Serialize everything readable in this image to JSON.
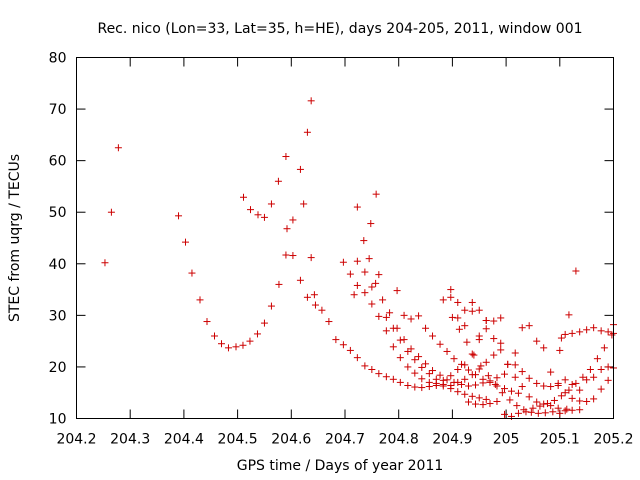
{
  "chart_data": {
    "type": "scatter",
    "title": "Rec. nico (Lon=33, Lat=35, h=HE), days 204-205, 2011, window 001",
    "xlabel": "GPS time / Days of year 2011",
    "ylabel": "STEC from uqrg / TECUs",
    "xlim": [
      204.2,
      205.2
    ],
    "ylim": [
      10,
      80
    ],
    "xticks": [
      204.2,
      204.3,
      204.4,
      204.5,
      204.6,
      204.7,
      204.8,
      204.9,
      205,
      205.1,
      205.2
    ],
    "xtick_labels": [
      "204.2",
      "204.3",
      "204.4",
      "204.5",
      "204.6",
      "204.7",
      "204.8",
      "204.9",
      "205",
      "205.1",
      "205.2"
    ],
    "yticks": [
      10,
      20,
      30,
      40,
      50,
      60,
      70,
      80
    ],
    "ytick_labels": [
      "10",
      "20",
      "30",
      "40",
      "50",
      "60",
      "70",
      "80"
    ],
    "marker": "+",
    "color": "#cc0000",
    "grid": false,
    "legend": "none",
    "points": [
      [
        204.253,
        40.2
      ],
      [
        204.265,
        50.0
      ],
      [
        204.278,
        62.5
      ],
      [
        204.39,
        49.3
      ],
      [
        204.403,
        44.2
      ],
      [
        204.415,
        38.2
      ],
      [
        204.43,
        33.0
      ],
      [
        204.443,
        28.8
      ],
      [
        204.457,
        26.0
      ],
      [
        204.47,
        24.5
      ],
      [
        204.483,
        23.7
      ],
      [
        204.497,
        23.9
      ],
      [
        204.51,
        24.2
      ],
      [
        204.523,
        25.0
      ],
      [
        204.537,
        26.4
      ],
      [
        204.55,
        28.5
      ],
      [
        204.563,
        31.8
      ],
      [
        204.577,
        36.0
      ],
      [
        204.59,
        41.7
      ],
      [
        204.603,
        48.5
      ],
      [
        204.617,
        58.3
      ],
      [
        204.63,
        65.5
      ],
      [
        204.637,
        71.6
      ],
      [
        204.511,
        52.9
      ],
      [
        204.524,
        50.5
      ],
      [
        204.538,
        49.5
      ],
      [
        204.55,
        49.0
      ],
      [
        204.563,
        51.6
      ],
      [
        204.576,
        56.0
      ],
      [
        204.59,
        60.8
      ],
      [
        204.592,
        46.8
      ],
      [
        204.603,
        41.6
      ],
      [
        204.617,
        36.8
      ],
      [
        204.63,
        33.5
      ],
      [
        204.643,
        34.0
      ],
      [
        204.623,
        51.6
      ],
      [
        204.637,
        41.2
      ],
      [
        204.645,
        32.0
      ],
      [
        204.657,
        31.0
      ],
      [
        204.67,
        28.8
      ],
      [
        204.683,
        25.3
      ],
      [
        204.697,
        24.3
      ],
      [
        204.71,
        23.2
      ],
      [
        204.723,
        21.8
      ],
      [
        204.737,
        20.2
      ],
      [
        204.75,
        19.5
      ],
      [
        204.763,
        18.7
      ],
      [
        204.777,
        18.1
      ],
      [
        204.79,
        17.6
      ],
      [
        204.803,
        17.0
      ],
      [
        204.817,
        16.4
      ],
      [
        204.83,
        16.1
      ],
      [
        204.843,
        16.0
      ],
      [
        204.857,
        16.2
      ],
      [
        204.87,
        16.8
      ],
      [
        204.883,
        17.4
      ],
      [
        204.897,
        18.3
      ],
      [
        204.91,
        19.5
      ],
      [
        204.923,
        20.4
      ],
      [
        204.937,
        22.5
      ],
      [
        204.95,
        25.3
      ],
      [
        204.963,
        29.0
      ],
      [
        204.697,
        40.3
      ],
      [
        204.71,
        38.0
      ],
      [
        204.723,
        35.8
      ],
      [
        204.737,
        34.4
      ],
      [
        204.75,
        32.2
      ],
      [
        204.763,
        29.8
      ],
      [
        204.777,
        27.0
      ],
      [
        204.79,
        23.9
      ],
      [
        204.803,
        21.8
      ],
      [
        204.817,
        20.0
      ],
      [
        204.83,
        18.8
      ],
      [
        204.843,
        17.7
      ],
      [
        204.857,
        17.0
      ],
      [
        204.87,
        16.4
      ],
      [
        204.883,
        16.3
      ],
      [
        204.897,
        16.4
      ],
      [
        204.91,
        17.0
      ],
      [
        204.923,
        17.6
      ],
      [
        204.937,
        18.5
      ],
      [
        204.95,
        19.6
      ],
      [
        204.963,
        20.9
      ],
      [
        204.977,
        22.3
      ],
      [
        204.99,
        24.6
      ],
      [
        204.717,
        34.0
      ],
      [
        204.723,
        51.0
      ],
      [
        204.735,
        44.5
      ],
      [
        204.748,
        47.8
      ],
      [
        204.758,
        53.5
      ],
      [
        204.745,
        41.0
      ],
      [
        204.757,
        36.2
      ],
      [
        204.77,
        33.0
      ],
      [
        204.783,
        30.5
      ],
      [
        204.797,
        27.5
      ],
      [
        204.81,
        25.3
      ],
      [
        204.823,
        23.5
      ],
      [
        204.837,
        22.0
      ],
      [
        204.85,
        20.6
      ],
      [
        204.863,
        19.3
      ],
      [
        204.877,
        18.4
      ],
      [
        204.89,
        17.5
      ],
      [
        204.903,
        17.0
      ],
      [
        204.917,
        16.6
      ],
      [
        204.93,
        16.3
      ],
      [
        204.943,
        16.5
      ],
      [
        204.957,
        16.9
      ],
      [
        204.97,
        17.3
      ],
      [
        204.983,
        17.9
      ],
      [
        204.997,
        18.6
      ],
      [
        204.723,
        40.5
      ],
      [
        204.737,
        38.4
      ],
      [
        204.75,
        35.5
      ],
      [
        204.763,
        37.9
      ],
      [
        204.777,
        29.6
      ],
      [
        204.79,
        27.5
      ],
      [
        204.803,
        25.2
      ],
      [
        204.817,
        23.0
      ],
      [
        204.83,
        21.4
      ],
      [
        204.843,
        19.9
      ],
      [
        204.857,
        18.7
      ],
      [
        204.87,
        17.6
      ],
      [
        204.883,
        16.6
      ],
      [
        204.897,
        15.8
      ],
      [
        204.91,
        15.2
      ],
      [
        204.923,
        14.7
      ],
      [
        204.937,
        14.3
      ],
      [
        204.95,
        14.0
      ],
      [
        204.963,
        13.7
      ],
      [
        204.797,
        34.8
      ],
      [
        204.81,
        30.0
      ],
      [
        204.823,
        29.3
      ],
      [
        204.837,
        29.9
      ],
      [
        204.85,
        27.5
      ],
      [
        204.863,
        26.0
      ],
      [
        204.877,
        24.4
      ],
      [
        204.89,
        23.0
      ],
      [
        204.903,
        21.6
      ],
      [
        204.917,
        20.5
      ],
      [
        204.93,
        19.4
      ],
      [
        204.943,
        18.5
      ],
      [
        204.957,
        17.6
      ],
      [
        204.97,
        17.0
      ],
      [
        204.983,
        16.3
      ],
      [
        204.997,
        15.8
      ],
      [
        205.01,
        15.3
      ],
      [
        205.023,
        14.9
      ],
      [
        204.883,
        33.0
      ],
      [
        204.897,
        35.0
      ],
      [
        204.91,
        29.5
      ],
      [
        204.923,
        28.0
      ],
      [
        204.937,
        30.8
      ],
      [
        204.95,
        26.0
      ],
      [
        204.963,
        27.4
      ],
      [
        204.977,
        28.9
      ],
      [
        204.99,
        29.5
      ],
      [
        204.897,
        33.5
      ],
      [
        204.91,
        32.5
      ],
      [
        204.923,
        31.0
      ],
      [
        204.937,
        32.5
      ],
      [
        204.95,
        31.0
      ],
      [
        204.963,
        29.0
      ],
      [
        204.977,
        25.5
      ],
      [
        204.99,
        23.3
      ],
      [
        205.003,
        20.5
      ],
      [
        205.017,
        18.0
      ],
      [
        205.03,
        16.2
      ],
      [
        205.043,
        14.2
      ],
      [
        205.057,
        13.2
      ],
      [
        205.07,
        12.8
      ],
      [
        205.083,
        12.5
      ],
      [
        205.097,
        12.0
      ],
      [
        205.11,
        11.5
      ],
      [
        205.123,
        11.6
      ],
      [
        205.137,
        11.7
      ],
      [
        204.9,
        29.6
      ],
      [
        204.913,
        27.3
      ],
      [
        204.927,
        24.8
      ],
      [
        204.94,
        22.3
      ],
      [
        204.953,
        20.2
      ],
      [
        204.967,
        18.3
      ],
      [
        204.98,
        16.6
      ],
      [
        204.993,
        15.0
      ],
      [
        205.007,
        13.6
      ],
      [
        205.02,
        12.5
      ],
      [
        205.033,
        11.7
      ],
      [
        205.047,
        11.2
      ],
      [
        205.06,
        11.0
      ],
      [
        205.073,
        11.1
      ],
      [
        205.087,
        11.3
      ],
      [
        205.1,
        11.0
      ],
      [
        205.113,
        11.8
      ],
      [
        204.93,
        13.2
      ],
      [
        204.943,
        12.8
      ],
      [
        204.957,
        12.7
      ],
      [
        204.97,
        12.9
      ],
      [
        204.983,
        13.3
      ],
      [
        204.997,
        10.8
      ],
      [
        205.01,
        10.4
      ],
      [
        205.023,
        11.0
      ],
      [
        205.037,
        11.3
      ],
      [
        205.05,
        12.0
      ],
      [
        205.063,
        12.4
      ],
      [
        205.077,
        12.9
      ],
      [
        205.09,
        13.5
      ],
      [
        205.103,
        14.4
      ],
      [
        205.117,
        15.5
      ],
      [
        205.13,
        16.8
      ],
      [
        205.143,
        18.0
      ],
      [
        205.157,
        19.5
      ],
      [
        205.17,
        21.6
      ],
      [
        205.183,
        23.7
      ],
      [
        205.197,
        26.2
      ],
      [
        205.2,
        28.2
      ],
      [
        205.003,
        20.5
      ],
      [
        205.017,
        22.7
      ],
      [
        205.03,
        27.6
      ],
      [
        205.043,
        28.0
      ],
      [
        205.057,
        25.0
      ],
      [
        205.07,
        23.7
      ],
      [
        205.083,
        19.0
      ],
      [
        205.097,
        16.4
      ],
      [
        205.11,
        15.0
      ],
      [
        205.123,
        13.9
      ],
      [
        205.137,
        13.4
      ],
      [
        205.15,
        13.3
      ],
      [
        205.163,
        13.8
      ],
      [
        205.177,
        15.7
      ],
      [
        205.19,
        17.4
      ],
      [
        205.2,
        19.8
      ],
      [
        205.1,
        23.2
      ],
      [
        205.103,
        25.6
      ],
      [
        205.11,
        26.3
      ],
      [
        205.117,
        30.1
      ],
      [
        205.13,
        38.6
      ],
      [
        205.123,
        26.5
      ],
      [
        205.137,
        26.8
      ],
      [
        205.15,
        27.2
      ],
      [
        205.163,
        27.6
      ],
      [
        205.177,
        27.0
      ],
      [
        205.19,
        26.8
      ],
      [
        205.2,
        26.5
      ],
      [
        205.017,
        20.4
      ],
      [
        205.03,
        19.1
      ],
      [
        205.043,
        17.8
      ],
      [
        205.057,
        16.8
      ],
      [
        205.07,
        16.3
      ],
      [
        205.083,
        16.2
      ],
      [
        205.097,
        16.8
      ],
      [
        205.11,
        17.5
      ],
      [
        205.123,
        16.6
      ],
      [
        205.137,
        15.5
      ],
      [
        205.15,
        17.5
      ],
      [
        205.163,
        18.0
      ],
      [
        205.177,
        19.5
      ],
      [
        205.19,
        20.0
      ]
    ]
  }
}
